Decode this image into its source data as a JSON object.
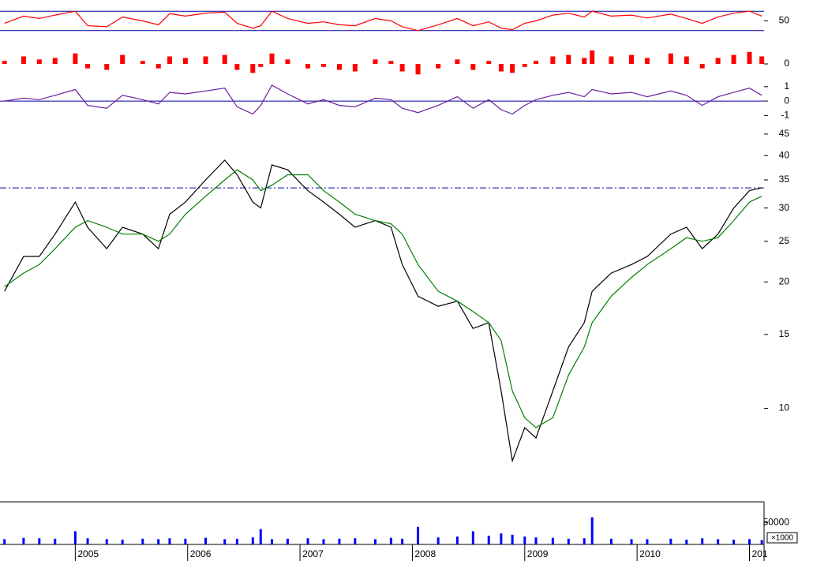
{
  "chart_data": [
    {
      "type": "line",
      "color": "#ff0000",
      "ylim": [
        15,
        85
      ],
      "yticks": [
        50
      ],
      "hlines": [
        70,
        30
      ],
      "hline_color": "#0000a0",
      "values": [
        45,
        60,
        55,
        62,
        70,
        40,
        38,
        58,
        50,
        42,
        65,
        60,
        66,
        68,
        45,
        35,
        40,
        70,
        55,
        45,
        48,
        42,
        40,
        55,
        50,
        38,
        30,
        42,
        55,
        40,
        48,
        35,
        32,
        45,
        50,
        62,
        66,
        58,
        70,
        60,
        62,
        56,
        64,
        55,
        45,
        58,
        66,
        70,
        60
      ]
    },
    {
      "type": "bar",
      "color": "#ff0000",
      "ylim": [
        -1,
        1
      ],
      "yticks": [
        0
      ],
      "values": [
        0.2,
        0.5,
        0.3,
        0.4,
        0.7,
        -0.3,
        -0.4,
        0.6,
        0.2,
        -0.3,
        0.5,
        0.4,
        0.5,
        0.6,
        -0.4,
        -0.6,
        -0.2,
        0.7,
        0.3,
        -0.3,
        -0.2,
        -0.4,
        -0.5,
        0.3,
        0.2,
        -0.5,
        -0.7,
        -0.3,
        0.3,
        -0.4,
        0.2,
        -0.5,
        -0.6,
        -0.2,
        0.2,
        0.5,
        0.6,
        0.4,
        0.9,
        0.5,
        0.6,
        0.4,
        0.7,
        0.5,
        -0.3,
        0.4,
        0.6,
        0.8,
        0.5
      ]
    },
    {
      "type": "line",
      "color": "#6a1fa0",
      "ylim": [
        -1.2,
        1.1
      ],
      "yticks": [
        1,
        0,
        -1
      ],
      "hlines": [
        0
      ],
      "hline_color": "#0000a0",
      "values": [
        0,
        0.2,
        0.1,
        0.4,
        0.8,
        -0.3,
        -0.5,
        0.4,
        0.1,
        -0.2,
        0.6,
        0.5,
        0.7,
        0.9,
        -0.4,
        -0.9,
        -0.3,
        1.1,
        0.5,
        -0.2,
        0.1,
        -0.3,
        -0.4,
        0.2,
        0.1,
        -0.5,
        -0.8,
        -0.3,
        0.3,
        -0.5,
        0.1,
        -0.6,
        -0.9,
        -0.3,
        0.1,
        0.4,
        0.6,
        0.3,
        0.8,
        0.5,
        0.6,
        0.3,
        0.7,
        0.4,
        -0.3,
        0.3,
        0.6,
        0.9,
        0.4
      ]
    },
    {
      "type": "line",
      "log_scale": true,
      "ylim": [
        7,
        48
      ],
      "yticks": [
        10,
        15,
        20,
        25,
        30,
        35,
        40,
        45
      ],
      "hlines": [
        33.5
      ],
      "hline_color": "#0000a0",
      "xlim": [
        2004.33,
        2011.13
      ],
      "xticks": [
        2005,
        2006,
        2007,
        2008,
        2009,
        2010,
        {
          "value": 2011,
          "label": "201"
        }
      ],
      "x": [
        2004.37,
        2004.54,
        2004.68,
        2004.82,
        2005.0,
        2005.11,
        2005.28,
        2005.42,
        2005.6,
        2005.74,
        2005.84,
        2005.98,
        2006.16,
        2006.33,
        2006.44,
        2006.58,
        2006.65,
        2006.75,
        2006.89,
        2007.07,
        2007.21,
        2007.35,
        2007.49,
        2007.67,
        2007.81,
        2007.91,
        2008.05,
        2008.23,
        2008.4,
        2008.54,
        2008.68,
        2008.79,
        2008.89,
        2009.0,
        2009.1,
        2009.25,
        2009.39,
        2009.53,
        2009.6,
        2009.77,
        2009.95,
        2010.09,
        2010.3,
        2010.44,
        2010.58,
        2010.72,
        2010.86,
        2011.0,
        2011.11
      ],
      "series": [
        {
          "color": "#000000",
          "values": [
            19,
            23,
            23,
            26,
            31,
            27,
            24,
            27,
            26,
            24,
            29,
            31,
            35,
            39,
            36,
            31,
            30,
            38,
            37,
            33,
            31,
            29,
            27,
            28,
            27,
            22,
            18.5,
            17.5,
            18,
            15.5,
            16,
            11,
            7.5,
            9,
            8.5,
            11,
            14,
            16,
            19,
            21,
            22,
            23,
            26,
            27,
            24,
            26,
            30,
            33,
            33.5
          ]
        },
        {
          "color": "#008000",
          "values": [
            19.5,
            21,
            22,
            24,
            27,
            28,
            27,
            26,
            26,
            25,
            26,
            29,
            32,
            35,
            37,
            35,
            33,
            34,
            36,
            36,
            33,
            31,
            29,
            28,
            27.5,
            26,
            22,
            19,
            18,
            17,
            16,
            14.5,
            11,
            9.5,
            9,
            9.5,
            12,
            14,
            16,
            18.5,
            20.5,
            22,
            24,
            25.5,
            25,
            25.5,
            28,
            31,
            32
          ]
        }
      ]
    },
    {
      "type": "bar",
      "color": "#0000ff",
      "ylim": [
        0,
        90000
      ],
      "yticks": [
        50000
      ],
      "unit_label": "×1000",
      "values": [
        12000,
        15000,
        14000,
        13000,
        30000,
        14000,
        12000,
        11000,
        13000,
        12000,
        14000,
        13000,
        15000,
        12000,
        13000,
        16000,
        35000,
        12000,
        13000,
        14000,
        12000,
        13000,
        14000,
        12000,
        15000,
        13000,
        40000,
        16000,
        18000,
        30000,
        20000,
        25000,
        22000,
        18000,
        16000,
        15000,
        13000,
        14000,
        62000,
        13000,
        12000,
        12000,
        13000,
        11000,
        14000,
        12000,
        11000,
        12000,
        10000
      ]
    }
  ]
}
